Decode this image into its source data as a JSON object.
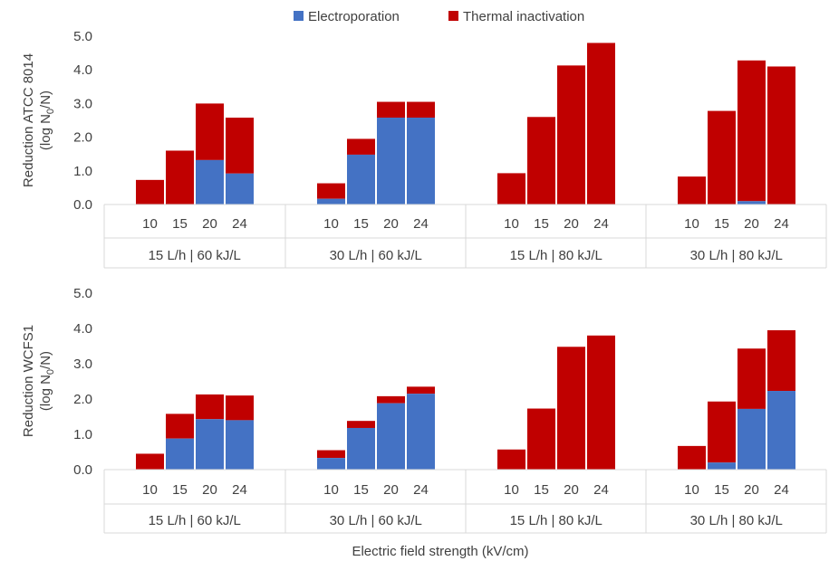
{
  "legend": {
    "items": [
      {
        "label": "Electroporation",
        "color": "#4472C4"
      },
      {
        "label": "Thermal inactivation",
        "color": "#C00000"
      }
    ]
  },
  "xlabel": "Electric field strength (kV/cm)",
  "chart_data": [
    {
      "type": "bar",
      "stacked": true,
      "ylabel_line1": "Reduction ATCC 8014",
      "ylabel_line2_prefix": "(log N",
      "ylabel_line2_sub": "0",
      "ylabel_line2_suffix": "/N)",
      "ylim": [
        0,
        5
      ],
      "yticks": [
        "0.0",
        "1.0",
        "2.0",
        "3.0",
        "4.0",
        "5.0"
      ],
      "groups": [
        {
          "label": "15 L/h  | 60 kJ/L",
          "categories": [
            "10",
            "15",
            "20",
            "24"
          ],
          "electroporation": [
            0,
            0,
            1.32,
            0.92
          ],
          "total": [
            0.73,
            1.6,
            3.0,
            2.58
          ]
        },
        {
          "label": "30 L/h  | 60 kJ/L",
          "categories": [
            "10",
            "15",
            "20",
            "24"
          ],
          "electroporation": [
            0.17,
            1.48,
            2.58,
            2.58
          ],
          "total": [
            0.63,
            1.95,
            3.05,
            3.05
          ]
        },
        {
          "label": "15 L/h  | 80 kJ/L",
          "categories": [
            "10",
            "15",
            "20",
            "24"
          ],
          "electroporation": [
            0,
            0,
            0,
            0
          ],
          "total": [
            0.93,
            2.6,
            4.13,
            4.8
          ]
        },
        {
          "label": "30 L/h  | 80 kJ/L",
          "categories": [
            "10",
            "15",
            "20",
            "24"
          ],
          "electroporation": [
            0,
            0,
            0.1,
            0
          ],
          "total": [
            0.83,
            2.78,
            4.28,
            4.1
          ]
        }
      ]
    },
    {
      "type": "bar",
      "stacked": true,
      "ylabel_line1": "Reduction  WCFS1",
      "ylabel_line2_prefix": "(log N",
      "ylabel_line2_sub": "0",
      "ylabel_line2_suffix": "/N)",
      "ylim": [
        0,
        5
      ],
      "yticks": [
        "0.0",
        "1.0",
        "2.0",
        "3.0",
        "4.0",
        "5.0"
      ],
      "groups": [
        {
          "label": "15 L/h  | 60 kJ/L",
          "categories": [
            "10",
            "15",
            "20",
            "24"
          ],
          "electroporation": [
            0,
            0.88,
            1.43,
            1.4
          ],
          "total": [
            0.45,
            1.58,
            2.13,
            2.1
          ]
        },
        {
          "label": "30 L/h  | 60 kJ/L",
          "categories": [
            "10",
            "15",
            "20",
            "24"
          ],
          "electroporation": [
            0.33,
            1.18,
            1.88,
            2.15
          ],
          "total": [
            0.55,
            1.38,
            2.08,
            2.35
          ]
        },
        {
          "label": "15 L/h  | 80 kJ/L",
          "categories": [
            "10",
            "15",
            "20",
            "24"
          ],
          "electroporation": [
            0,
            0,
            0,
            0
          ],
          "total": [
            0.57,
            1.73,
            3.48,
            3.8
          ]
        },
        {
          "label": "30 L/h  | 80 kJ/L",
          "categories": [
            "10",
            "15",
            "20",
            "24"
          ],
          "electroporation": [
            0,
            0.2,
            1.72,
            2.23
          ],
          "total": [
            0.67,
            1.93,
            3.43,
            3.95
          ]
        }
      ]
    }
  ]
}
